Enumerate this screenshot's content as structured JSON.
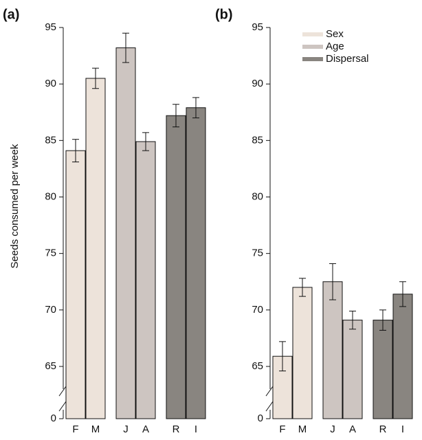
{
  "chart_data": [
    {
      "type": "bar",
      "panel_label": "(a)",
      "ylabel": "Seeds consumed per week",
      "ylim": [
        0,
        95
      ],
      "axis_break": [
        0,
        65
      ],
      "yticks": [
        0,
        65,
        70,
        75,
        80,
        85,
        90,
        95
      ],
      "series": [
        {
          "color": "#ede3da",
          "categories": [
            "F",
            "M"
          ],
          "values": [
            84.1,
            90.5
          ],
          "errors": [
            1.0,
            0.9
          ]
        },
        {
          "color": "#cdc5c1",
          "categories": [
            "J",
            "A"
          ],
          "values": [
            93.2,
            84.9
          ],
          "errors": [
            1.3,
            0.8
          ]
        },
        {
          "color": "#898580",
          "categories": [
            "R",
            "I"
          ],
          "values": [
            87.2,
            87.9
          ],
          "errors": [
            1.0,
            0.9
          ]
        }
      ]
    },
    {
      "type": "bar",
      "panel_label": "(b)",
      "legend": "upper right",
      "ylim": [
        0,
        95
      ],
      "axis_break": [
        0,
        65
      ],
      "yticks": [
        0,
        65,
        70,
        75,
        80,
        85,
        90,
        95
      ],
      "series": [
        {
          "name": "Sex",
          "color": "#ede3da",
          "categories": [
            "F",
            "M"
          ],
          "values": [
            65.9,
            72.0
          ],
          "errors": [
            1.3,
            0.8
          ]
        },
        {
          "name": "Age",
          "color": "#cdc5c1",
          "categories": [
            "J",
            "A"
          ],
          "values": [
            72.5,
            69.1
          ],
          "errors": [
            1.6,
            0.8
          ]
        },
        {
          "name": "Dispersal",
          "color": "#898580",
          "categories": [
            "R",
            "I"
          ],
          "values": [
            69.1,
            71.4
          ],
          "errors": [
            0.9,
            1.1
          ]
        }
      ]
    }
  ]
}
